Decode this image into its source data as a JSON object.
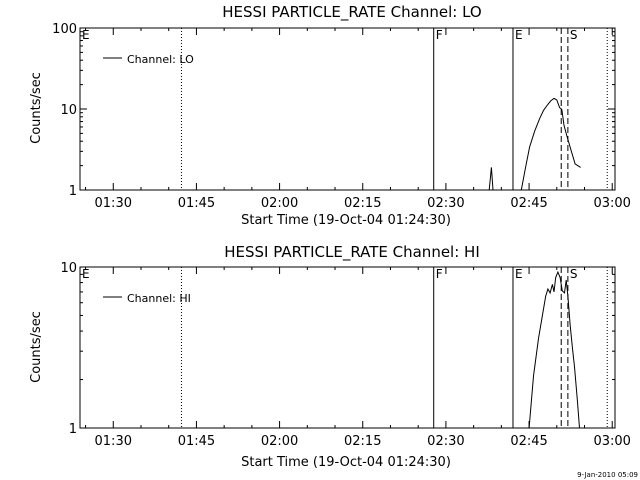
{
  "footer": {
    "timestamp": "9-Jan-2010 05:09"
  },
  "chart_data": [
    {
      "type": "line",
      "title": "HESSI PARTICLE_RATE Channel: LO",
      "xlabel": "Start Time (19-Oct-04 01:24:30)",
      "ylabel": "Counts/sec",
      "yscale": "log",
      "xlim": [
        0,
        96.5
      ],
      "ylim": [
        1,
        100
      ],
      "x_ticks": [
        {
          "x": 6,
          "label": "01:30"
        },
        {
          "x": 21,
          "label": "01:45"
        },
        {
          "x": 36,
          "label": "02:00"
        },
        {
          "x": 51,
          "label": "02:15"
        },
        {
          "x": 66,
          "label": "02:30"
        },
        {
          "x": 81,
          "label": "02:45"
        },
        {
          "x": 96,
          "label": "03:00"
        }
      ],
      "y_ticks": [
        {
          "y": 1,
          "label": "1"
        },
        {
          "y": 10,
          "label": "10"
        },
        {
          "y": 100,
          "label": "100"
        }
      ],
      "legend": "Channel: LO",
      "markers": [
        {
          "x": 0,
          "label": "E",
          "style": "none"
        },
        {
          "x": 18.3,
          "label": "",
          "style": "dotted"
        },
        {
          "x": 63.8,
          "label": "F",
          "style": "solid"
        },
        {
          "x": 78.1,
          "label": "E",
          "style": "solid"
        },
        {
          "x": 86.8,
          "label": "",
          "style": "dashed"
        },
        {
          "x": 88.0,
          "label": "S",
          "style": "dashed"
        },
        {
          "x": 95.1,
          "label": "",
          "style": "dotted"
        }
      ],
      "series": [
        {
          "segments": [
            [
              [
                73.8,
                1
              ],
              [
                74.2,
                1.9
              ],
              [
                74.5,
                1
              ]
            ],
            [
              [
                79.6,
                1
              ],
              [
                80.3,
                1.8
              ],
              [
                81.1,
                3.4
              ],
              [
                82.0,
                5.3
              ],
              [
                82.9,
                7.6
              ],
              [
                83.6,
                9.6
              ],
              [
                84.3,
                11.2
              ],
              [
                84.9,
                12.6
              ],
              [
                85.5,
                13.5
              ],
              [
                86.0,
                12.9
              ],
              [
                86.5,
                10.4
              ],
              [
                86.9,
                9.9
              ],
              [
                87.3,
                6.3
              ],
              [
                87.8,
                4.7
              ],
              [
                88.4,
                3.4
              ],
              [
                89.3,
                2.1
              ],
              [
                90.3,
                1.9
              ]
            ]
          ]
        }
      ]
    },
    {
      "type": "line",
      "title": "HESSI PARTICLE_RATE Channel: HI",
      "xlabel": "Start Time (19-Oct-04 01:24:30)",
      "ylabel": "Counts/sec",
      "yscale": "log",
      "xlim": [
        0,
        96.5
      ],
      "ylim": [
        1,
        10
      ],
      "x_ticks": [
        {
          "x": 6,
          "label": "01:30"
        },
        {
          "x": 21,
          "label": "01:45"
        },
        {
          "x": 36,
          "label": "02:00"
        },
        {
          "x": 51,
          "label": "02:15"
        },
        {
          "x": 66,
          "label": "02:30"
        },
        {
          "x": 81,
          "label": "02:45"
        },
        {
          "x": 96,
          "label": "03:00"
        }
      ],
      "y_ticks": [
        {
          "y": 1,
          "label": "1"
        },
        {
          "y": 10,
          "label": "10"
        }
      ],
      "legend": "Channel: HI",
      "markers": [
        {
          "x": 0,
          "label": "E",
          "style": "none"
        },
        {
          "x": 18.3,
          "label": "",
          "style": "dotted"
        },
        {
          "x": 63.8,
          "label": "F",
          "style": "solid"
        },
        {
          "x": 78.1,
          "label": "E",
          "style": "solid"
        },
        {
          "x": 86.8,
          "label": "",
          "style": "dashed"
        },
        {
          "x": 88.0,
          "label": "S",
          "style": "dashed"
        },
        {
          "x": 95.1,
          "label": "",
          "style": "dotted"
        }
      ],
      "series": [
        {
          "segments": [
            [
              [
                81.0,
                1
              ],
              [
                81.8,
                2.1
              ],
              [
                82.7,
                3.6
              ],
              [
                83.4,
                5.0
              ],
              [
                84.0,
                6.6
              ],
              [
                84.4,
                7.3
              ],
              [
                84.8,
                6.9
              ],
              [
                85.2,
                7.8
              ],
              [
                85.5,
                7.0
              ],
              [
                85.8,
                8.6
              ],
              [
                86.2,
                9.3
              ],
              [
                86.6,
                8.6
              ],
              [
                87.0,
                7.1
              ],
              [
                87.4,
                6.9
              ],
              [
                87.7,
                8.3
              ],
              [
                88.0,
                6.6
              ],
              [
                88.4,
                4.4
              ],
              [
                88.8,
                3.2
              ],
              [
                89.2,
                2.4
              ],
              [
                89.7,
                1.5
              ],
              [
                90.1,
                1
              ]
            ]
          ]
        }
      ]
    }
  ]
}
